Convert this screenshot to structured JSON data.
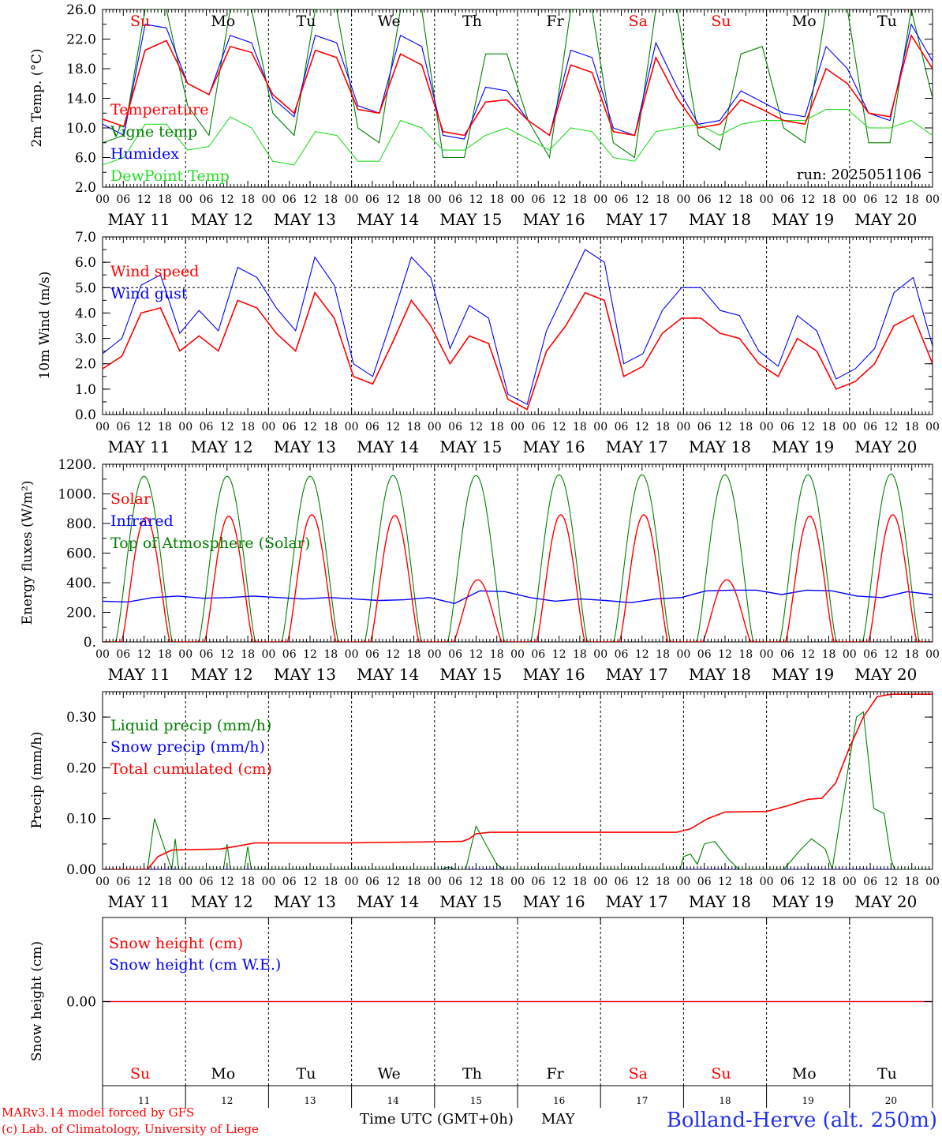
{
  "run_label": "run: 2025051106",
  "x_axis": {
    "hours": [
      "00",
      "06",
      "12",
      "18"
    ],
    "last_hour": "00",
    "date_labels": [
      "MAY 11",
      "MAY 12",
      "MAY 13",
      "MAY 14",
      "MAY 15",
      "MAY 16",
      "MAY 17",
      "MAY 18",
      "MAY 19",
      "MAY 20"
    ],
    "day_names": [
      "Su",
      "Mo",
      "Tu",
      "We",
      "Th",
      "Fr",
      "Sa",
      "Su",
      "Mo",
      "Tu"
    ],
    "day_name_colors": [
      "#ff0000",
      "#000000",
      "#000000",
      "#000000",
      "#000000",
      "#000000",
      "#ff0000",
      "#ff0000",
      "#000000",
      "#000000"
    ],
    "day_numbers": [
      "11",
      "12",
      "13",
      "14",
      "15",
      "16",
      "17",
      "18",
      "19",
      "20"
    ]
  },
  "footer": {
    "model_line": "MARv3.14 model forced by GFS",
    "copyright_line": "(c) Lab. of Climatology, University of Liege",
    "time_axis_title": "Time UTC (GMT+0h)",
    "month": "MAY",
    "station": "Bolland-Herve (alt. 250m)"
  },
  "colors": {
    "red": "#ff0000",
    "blue": "#0000ff",
    "dark_green": "#008000",
    "light_green": "#22dd22"
  },
  "chart_data": [
    {
      "id": "temperature",
      "type": "line",
      "ylabel": "2m Temp. (°C)",
      "ylim": [
        2,
        26
      ],
      "ytick_labels": [
        "2.0",
        "6.0",
        "10.0",
        "14.0",
        "18.0",
        "22.0",
        "26.0"
      ],
      "yticks": [
        2,
        6,
        10,
        14,
        18,
        22,
        26
      ],
      "x_hours_per_point": 6,
      "series": [
        {
          "name": "Temperature",
          "color": "#ff0000",
          "values": [
            11.2,
            10.2,
            20.5,
            21.8,
            16,
            14.5,
            21,
            20.2,
            14.5,
            12,
            20.5,
            19.5,
            12.5,
            12,
            20,
            18.5,
            9.5,
            9,
            13.5,
            13.8,
            11,
            9,
            18.5,
            17.5,
            9.5,
            9,
            19.5,
            14,
            10,
            10.5,
            13.8,
            12.5,
            11,
            10.5,
            18,
            16,
            12,
            11.5,
            22.5,
            18
          ]
        },
        {
          "name": "Vigne temp",
          "color": "#008000",
          "values": [
            8,
            9,
            26,
            26,
            13,
            9,
            26,
            26,
            12,
            9,
            26,
            26,
            10,
            8,
            26,
            26,
            6,
            6,
            20,
            20,
            11,
            6,
            26,
            26,
            8,
            6,
            26,
            26,
            9,
            7,
            20,
            21,
            10,
            8,
            26,
            26,
            8,
            8,
            26,
            14
          ]
        },
        {
          "name": "Humidex",
          "color": "#0000ff",
          "values": [
            10.5,
            9,
            24,
            23.5,
            16,
            14.5,
            22.5,
            21.5,
            14,
            11.5,
            22.5,
            21.5,
            13,
            12,
            22.5,
            21,
            9,
            8.5,
            15.5,
            15,
            11,
            9,
            20.5,
            19.5,
            10,
            9,
            21.5,
            15.5,
            10.5,
            11,
            15,
            13.5,
            12,
            11.5,
            21,
            18,
            12,
            11,
            24,
            19
          ]
        },
        {
          "name": "DewPoint Temp",
          "color": "#22dd22",
          "values": [
            5,
            6,
            10.5,
            10.5,
            7,
            7.5,
            11.5,
            10,
            5.5,
            5,
            9.5,
            9,
            5.5,
            5.5,
            11,
            10,
            7,
            7,
            9,
            10,
            8.5,
            7,
            10,
            9.5,
            6,
            5.5,
            9.5,
            10,
            10.5,
            9,
            10.5,
            11,
            11,
            11,
            12.5,
            12.5,
            10,
            10,
            11,
            9
          ]
        }
      ]
    },
    {
      "id": "wind",
      "type": "line",
      "ylabel": "10m Wind (m/s)",
      "ylim": [
        0,
        7
      ],
      "ytick_labels": [
        "0.0",
        "1.0",
        "2.0",
        "3.0",
        "4.0",
        "5.0",
        "6.0",
        "7.0"
      ],
      "yticks": [
        0,
        1,
        2,
        3,
        4,
        5,
        6,
        7
      ],
      "reference_line": 5,
      "x_hours_per_point": 6,
      "series": [
        {
          "name": "Wind speed",
          "color": "#ff0000",
          "values": [
            1.8,
            2.3,
            4,
            4.2,
            2.5,
            3.1,
            2.5,
            4.5,
            4.2,
            3.2,
            2.5,
            4.8,
            3.8,
            1.5,
            1.2,
            2.8,
            4.5,
            3.5,
            2,
            3.1,
            2.8,
            0.6,
            0.2,
            2.5,
            3.5,
            4.8,
            4.5,
            1.5,
            1.9,
            3.2,
            3.8,
            3.8,
            3.2,
            3,
            2,
            1.5,
            3,
            2.5,
            1,
            1.3,
            2,
            3.5,
            3.9,
            2
          ]
        },
        {
          "name": "Wind gust",
          "color": "#0000ff",
          "values": [
            2.4,
            3,
            5.1,
            5.5,
            3.2,
            4.1,
            3.3,
            5.8,
            5.4,
            4.2,
            3.3,
            6.2,
            5.1,
            2,
            1.5,
            3.8,
            6.2,
            5.4,
            2.6,
            4.3,
            3.8,
            0.8,
            0.4,
            3.3,
            4.9,
            6.5,
            6,
            2,
            2.4,
            4.1,
            5,
            5,
            4.1,
            3.9,
            2.5,
            1.9,
            3.9,
            3.3,
            1.4,
            1.8,
            2.6,
            4.8,
            5.4,
            2.7
          ]
        }
      ]
    },
    {
      "id": "energy",
      "type": "line",
      "ylabel": "Energy fluxes (W/m²)",
      "ylim": [
        0,
        1200
      ],
      "ytick_labels": [
        "0.",
        "200.",
        "400.",
        "600.",
        "800.",
        "1000.",
        "1200."
      ],
      "yticks": [
        0,
        200,
        400,
        600,
        800,
        1000,
        1200
      ],
      "daily_peaks": {
        "solar": [
          840,
          850,
          860,
          855,
          420,
          860,
          860,
          420,
          850,
          860
        ],
        "toa": [
          1120,
          1120,
          1120,
          1125,
          1125,
          1130,
          1130,
          1130,
          1130,
          1135
        ]
      },
      "series": [
        {
          "name": "Solar",
          "color": "#ff0000"
        },
        {
          "name": "Infrared",
          "color": "#0000ff",
          "values": [
            275,
            270,
            300,
            310,
            295,
            300,
            310,
            300,
            290,
            300,
            290,
            280,
            285,
            300,
            260,
            345,
            340,
            300,
            275,
            290,
            280,
            265,
            290,
            300,
            345,
            350,
            350,
            320,
            350,
            345,
            310,
            300,
            340,
            320
          ]
        },
        {
          "name": "Top of Atmosphere (Solar)",
          "color": "#008000"
        }
      ]
    },
    {
      "id": "precip",
      "type": "line",
      "ylabel": "Precip (mm/h)",
      "ylim": [
        0,
        0.35
      ],
      "ytick_labels": [
        "0.00",
        "0.10",
        "0.20",
        "0.30"
      ],
      "yticks": [
        0,
        0.1,
        0.2,
        0.3
      ],
      "series": [
        {
          "name": "Liquid precip (mm/h)",
          "color": "#008000",
          "points": [
            [
              0,
              0
            ],
            [
              13,
              0
            ],
            [
              15,
              0.1
            ],
            [
              18,
              0.04
            ],
            [
              20,
              0
            ],
            [
              21,
              0.06
            ],
            [
              22,
              0
            ],
            [
              35,
              0
            ],
            [
              36,
              0.05
            ],
            [
              37,
              0
            ],
            [
              41,
              0
            ],
            [
              42,
              0.045
            ],
            [
              43,
              0
            ],
            [
              98,
              0
            ],
            [
              100,
              0.005
            ],
            [
              102,
              0
            ],
            [
              105,
              0
            ],
            [
              108,
              0.085
            ],
            [
              114,
              0.01
            ],
            [
              116,
              0
            ],
            [
              167,
              0
            ],
            [
              168,
              0.025
            ],
            [
              170,
              0.03
            ],
            [
              172,
              0.01
            ],
            [
              174,
              0.05
            ],
            [
              177,
              0.055
            ],
            [
              181,
              0.02
            ],
            [
              184,
              0
            ],
            [
              197,
              0
            ],
            [
              202,
              0.04
            ],
            [
              205,
              0.06
            ],
            [
              209,
              0.04
            ],
            [
              211,
              0
            ],
            [
              214,
              0.13
            ],
            [
              218,
              0.3
            ],
            [
              220,
              0.31
            ],
            [
              223,
              0.12
            ],
            [
              226,
              0.11
            ],
            [
              228,
              0.02
            ],
            [
              229,
              0
            ],
            [
              240,
              0
            ]
          ]
        },
        {
          "name": "Snow precip (mm/h)",
          "color": "#0000ff",
          "points": [
            [
              0,
              0
            ],
            [
              240,
              0
            ]
          ]
        },
        {
          "name": "Total cumulated (cm)",
          "color": "#ff0000",
          "points": [
            [
              0,
              0
            ],
            [
              13,
              0
            ],
            [
              16,
              0.025
            ],
            [
              20,
              0.038
            ],
            [
              34,
              0.04
            ],
            [
              40,
              0.047
            ],
            [
              44,
              0.052
            ],
            [
              70,
              0.052
            ],
            [
              104,
              0.055
            ],
            [
              106,
              0.06
            ],
            [
              108,
              0.07
            ],
            [
              112,
              0.073
            ],
            [
              166,
              0.073
            ],
            [
              170,
              0.08
            ],
            [
              175,
              0.1
            ],
            [
              180,
              0.113
            ],
            [
              192,
              0.114
            ],
            [
              198,
              0.125
            ],
            [
              204,
              0.138
            ],
            [
              208,
              0.14
            ],
            [
              212,
              0.17
            ],
            [
              216,
              0.24
            ],
            [
              220,
              0.3
            ],
            [
              224,
              0.34
            ],
            [
              228,
              0.345
            ],
            [
              240,
              0.345
            ]
          ]
        }
      ]
    },
    {
      "id": "snow",
      "type": "line",
      "ylabel": "Snow height (cm)",
      "ytick_labels": [
        "0.00"
      ],
      "yticks": [
        0
      ],
      "series": [
        {
          "name": "Snow height (cm)",
          "color": "#ff0000",
          "values": [
            0,
            0
          ]
        },
        {
          "name": "Snow height (cm W.E.)",
          "color": "#0000ff",
          "values": [
            0,
            0
          ]
        }
      ]
    }
  ]
}
